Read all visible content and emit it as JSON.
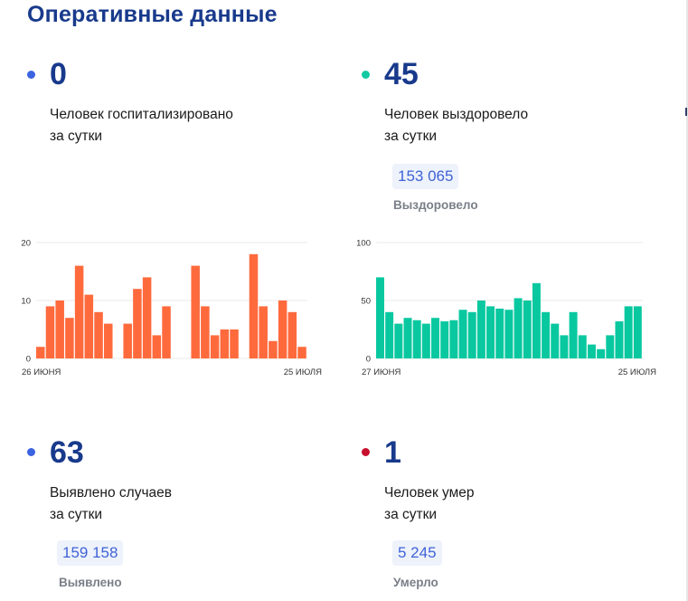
{
  "page": {
    "title": "Оперативные данные"
  },
  "colors": {
    "blue_dot": "#3b63e0",
    "teal_dot": "#10c9a2",
    "red_dot": "#c8102e",
    "hospitalized_bars": "#ff6a3d",
    "recovered_bars": "#09c8a0",
    "title": "#183a8c"
  },
  "stats": {
    "hospitalized": {
      "value": "0",
      "line1": "Человек госпитализировано",
      "line2": "за сутки"
    },
    "recovered": {
      "value": "45",
      "line1": "Человек выздоровело",
      "line2": "за сутки",
      "total": "153 065",
      "total_label": "Выздоровело"
    },
    "cases": {
      "value": "63",
      "line1": "Выявлено случаев",
      "line2": "за сутки",
      "total": "159 158",
      "total_label": "Выявлено"
    },
    "deaths": {
      "value": "1",
      "line1": "Человек умер",
      "line2": "за сутки",
      "total": "5 245",
      "total_label": "Умерло"
    }
  },
  "chart_data": [
    {
      "type": "bar",
      "color": "#ff6a3d",
      "x_start_label": "26 июня",
      "x_end_label": "25 июля",
      "ylim": [
        0,
        20
      ],
      "yticks": [
        0,
        10,
        20
      ],
      "grid": true,
      "values": [
        2,
        9,
        10,
        7,
        16,
        11,
        8,
        6,
        null,
        6,
        12,
        14,
        4,
        9,
        null,
        null,
        16,
        9,
        4,
        5,
        5,
        null,
        18,
        9,
        3,
        10,
        8,
        2
      ]
    },
    {
      "type": "bar",
      "color": "#09c8a0",
      "x_start_label": "27 июня",
      "x_end_label": "25 июля",
      "ylim": [
        0,
        100
      ],
      "yticks": [
        0,
        50,
        100
      ],
      "grid": true,
      "values": [
        70,
        40,
        30,
        35,
        33,
        30,
        35,
        32,
        33,
        42,
        40,
        50,
        45,
        43,
        42,
        52,
        50,
        65,
        40,
        30,
        20,
        40,
        20,
        12,
        8,
        20,
        32,
        45,
        45
      ]
    }
  ]
}
